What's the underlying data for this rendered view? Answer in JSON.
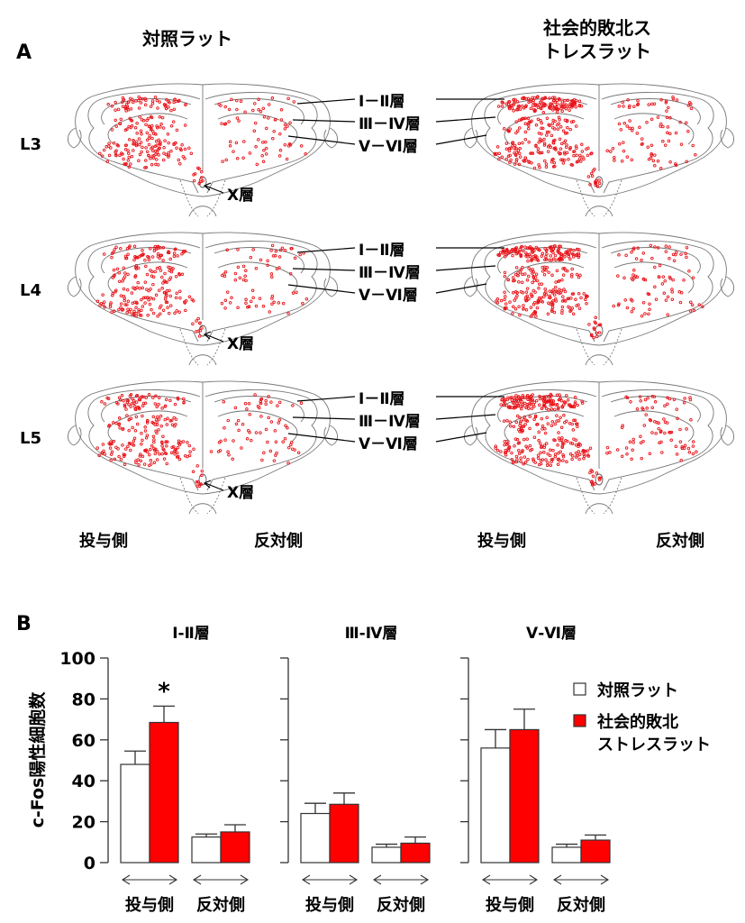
{
  "panel_a": {
    "letter": "A",
    "title_control": "対照ラット",
    "title_stress_line1": "社会的敗北ス",
    "title_stress_line2": "トレスラット",
    "rows": [
      "L3",
      "L4",
      "L5"
    ],
    "layers": {
      "l12": "Ⅰ－Ⅱ層",
      "l34": "Ⅲ－Ⅳ層",
      "l56": "Ⅴ－Ⅵ層",
      "l10": "Ⅹ層"
    },
    "side_labels": [
      "投与側",
      "反対側",
      "投与側",
      "反対側"
    ],
    "dot_color": "#e8141a"
  },
  "chart_data": {
    "type": "bar",
    "panel_letter": "B",
    "ylabel": "c-Fos陽性細胞数",
    "ylim": [
      0,
      100
    ],
    "yticks": [
      0,
      20,
      40,
      60,
      80,
      100
    ],
    "categories": [
      "投与側",
      "反対側"
    ],
    "legend": {
      "placement": "right",
      "entries": [
        {
          "name": "対照ラット",
          "color": "#ffffff"
        },
        {
          "name_line1": "社会的敗北",
          "name_line2": "ストレスラット",
          "color": "#ff0000"
        }
      ]
    },
    "subplots": [
      {
        "title": "Ⅰ-Ⅱ層",
        "series": [
          {
            "name": "対照ラット",
            "values": [
              48,
              12.5
            ],
            "errors": [
              6.5,
              1.5
            ]
          },
          {
            "name": "社会的敗北ストレスラット",
            "values": [
              68.5,
              15
            ],
            "errors": [
              8,
              3.5
            ]
          }
        ],
        "annotation": "*"
      },
      {
        "title": "Ⅲ-Ⅳ層",
        "series": [
          {
            "name": "対照ラット",
            "values": [
              24,
              7.5
            ],
            "errors": [
              5,
              1.5
            ]
          },
          {
            "name": "社会的敗北ストレスラット",
            "values": [
              28.5,
              9.5
            ],
            "errors": [
              5.5,
              3
            ]
          }
        ]
      },
      {
        "title": "Ⅴ-Ⅵ層",
        "series": [
          {
            "name": "対照ラット",
            "values": [
              56,
              7.5
            ],
            "errors": [
              9,
              1.5
            ]
          },
          {
            "name": "社会的敗北ストレスラット",
            "values": [
              65,
              11
            ],
            "errors": [
              10,
              2.5
            ]
          }
        ]
      }
    ]
  }
}
